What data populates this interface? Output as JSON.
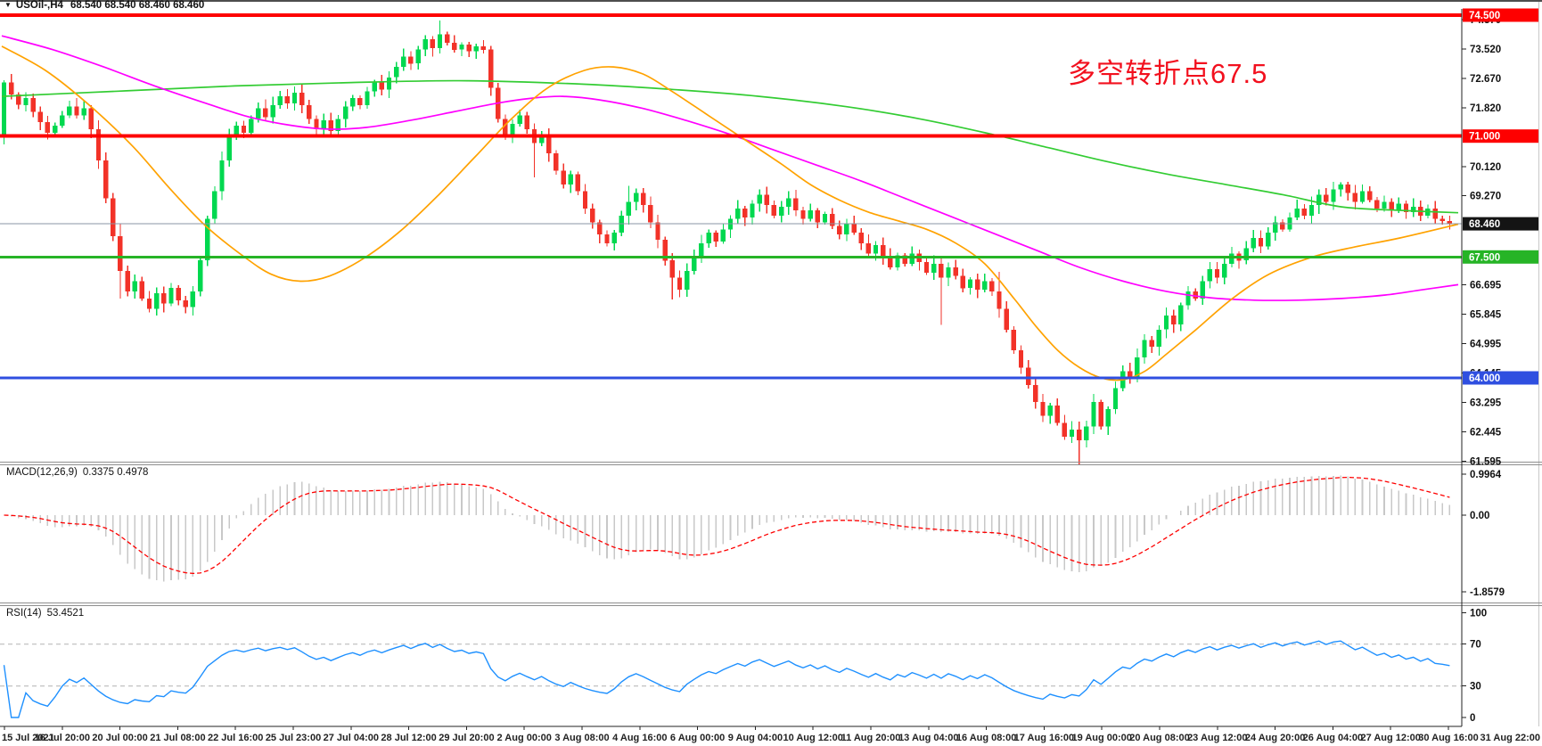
{
  "title_bar": {
    "dropdown_icon": "▼",
    "symbol": "USOil-,H4",
    "ohlc": "68.540 68.540 68.460 68.460"
  },
  "annotation": {
    "text": "多空转折点67.5",
    "color": "#f2101e"
  },
  "macd_panel": {
    "label": "MACD(12,26,9)",
    "values": "0.3375 0.4978",
    "scale_ticks": [
      "0.9964",
      "0.00",
      "-1.8579"
    ]
  },
  "rsi_panel": {
    "label": "RSI(14)",
    "value": "53.4521",
    "scale_ticks": [
      "100",
      "70",
      "30",
      "0"
    ],
    "dashed_levels": [
      70,
      30
    ]
  },
  "chart_data": [
    {
      "type": "candlestick",
      "title": "USOil-,H4",
      "timeframe": "H4",
      "current_ohlc": {
        "open": 68.54,
        "high": 68.54,
        "low": 68.46,
        "close": 68.46
      },
      "current_price": 68.46,
      "ylim": [
        61.55,
        74.68
      ],
      "open_first": 71.0,
      "closes": [
        72.55,
        72.2,
        71.9,
        72.1,
        71.7,
        71.4,
        71.1,
        71.3,
        71.6,
        71.85,
        71.6,
        71.8,
        71.2,
        70.3,
        69.2,
        68.1,
        67.1,
        66.5,
        66.8,
        66.3,
        66.0,
        66.45,
        66.15,
        66.6,
        66.25,
        66.05,
        66.5,
        67.4,
        68.6,
        69.4,
        70.3,
        71.0,
        71.3,
        71.1,
        71.5,
        71.8,
        71.55,
        71.9,
        72.15,
        71.95,
        72.25,
        71.9,
        71.5,
        71.2,
        71.45,
        71.15,
        71.5,
        71.85,
        72.1,
        71.9,
        72.3,
        72.55,
        72.35,
        72.7,
        73.0,
        73.3,
        73.1,
        73.5,
        73.8,
        73.55,
        73.95,
        73.7,
        73.5,
        73.65,
        73.45,
        73.6,
        73.5,
        72.4,
        71.5,
        71.0,
        71.35,
        71.6,
        71.2,
        70.8,
        71.05,
        70.5,
        70.0,
        69.6,
        69.9,
        69.4,
        68.9,
        68.5,
        68.15,
        67.9,
        68.2,
        68.7,
        69.1,
        69.35,
        69.0,
        68.5,
        68.0,
        67.4,
        66.9,
        66.55,
        67.1,
        67.5,
        67.9,
        68.2,
        67.95,
        68.3,
        68.6,
        68.9,
        68.65,
        69.05,
        69.3,
        69.0,
        68.7,
        68.95,
        69.2,
        68.85,
        68.6,
        68.85,
        68.5,
        68.75,
        68.4,
        68.15,
        68.45,
        68.2,
        67.9,
        67.6,
        67.85,
        67.5,
        67.2,
        67.55,
        67.3,
        67.6,
        67.35,
        67.05,
        67.3,
        66.9,
        67.2,
        66.95,
        66.6,
        66.85,
        66.55,
        66.8,
        66.5,
        66.0,
        65.4,
        64.8,
        64.3,
        63.8,
        63.3,
        62.9,
        63.2,
        62.7,
        62.3,
        62.5,
        62.2,
        62.6,
        63.3,
        62.6,
        63.1,
        63.7,
        64.2,
        64.0,
        64.6,
        65.1,
        64.9,
        65.4,
        65.8,
        65.55,
        66.1,
        66.5,
        66.3,
        66.8,
        67.15,
        66.9,
        67.3,
        67.6,
        67.4,
        67.75,
        68.05,
        67.8,
        68.2,
        68.5,
        68.3,
        68.65,
        68.9,
        68.7,
        69.0,
        69.3,
        69.1,
        69.45,
        69.6,
        69.35,
        69.1,
        69.4,
        69.15,
        68.9,
        69.1,
        68.85,
        69.05,
        68.8,
        68.95,
        68.7,
        68.9,
        68.6,
        68.54,
        68.46
      ],
      "wick_boosts": {
        "16": [
          0.1,
          0.55
        ],
        "60": [
          0.3,
          0.05
        ],
        "73": [
          0.1,
          0.9
        ],
        "86": [
          0.3,
          0.05
        ],
        "92": [
          0.05,
          0.4
        ],
        "129": [
          0.05,
          1.3
        ],
        "137": [
          0.35,
          0.1
        ],
        "148": [
          0.05,
          0.5
        ]
      },
      "colors": {
        "up": "#00d84f",
        "down": "#f23228"
      },
      "y_ticks": [
        "74.370",
        "73.520",
        "72.670",
        "71.820",
        "70.120",
        "69.270",
        "66.695",
        "65.845",
        "64.995",
        "64.145",
        "63.295",
        "62.445",
        "61.595"
      ],
      "badges": [
        {
          "text": "74.500",
          "bg": "#fe0000"
        },
        {
          "text": "71.000",
          "bg": "#fe0000"
        },
        {
          "text": "68.460",
          "bg": "#141414"
        },
        {
          "text": "67.500",
          "bg": "#26b426"
        },
        {
          "text": "64.000",
          "bg": "#2f4fe0"
        }
      ],
      "hlines": [
        {
          "price": 74.5,
          "color": "#fe0000",
          "width": 4
        },
        {
          "price": 71.0,
          "color": "#fe0000",
          "width": 4
        },
        {
          "price": 68.46,
          "color": "#8a95a5",
          "width": 1.2
        },
        {
          "price": 67.5,
          "color": "#26b426",
          "width": 3
        },
        {
          "price": 64.0,
          "color": "#2f4fe0",
          "width": 3
        }
      ],
      "moving_averages": [
        {
          "name": "ma-slow-green",
          "color": "#33cc33",
          "points": [
            [
              0,
              72.15
            ],
            [
              0.08,
              72.3
            ],
            [
              0.16,
              72.45
            ],
            [
              0.24,
              72.55
            ],
            [
              0.32,
              72.6
            ],
            [
              0.4,
              72.5
            ],
            [
              0.46,
              72.35
            ],
            [
              0.52,
              72.15
            ],
            [
              0.58,
              71.85
            ],
            [
              0.63,
              71.5
            ],
            [
              0.68,
              71.05
            ],
            [
              0.72,
              70.65
            ],
            [
              0.76,
              70.25
            ],
            [
              0.8,
              69.9
            ],
            [
              0.84,
              69.6
            ],
            [
              0.88,
              69.3
            ],
            [
              0.92,
              68.95
            ],
            [
              0.96,
              68.85
            ],
            [
              1,
              68.78
            ]
          ]
        },
        {
          "name": "ma-medium-magenta",
          "color": "#ff00ff",
          "points": [
            [
              0,
              73.9
            ],
            [
              0.035,
              73.5
            ],
            [
              0.07,
              73.0
            ],
            [
              0.105,
              72.45
            ],
            [
              0.14,
              71.95
            ],
            [
              0.17,
              71.55
            ],
            [
              0.2,
              71.3
            ],
            [
              0.225,
              71.2
            ],
            [
              0.25,
              71.25
            ],
            [
              0.28,
              71.45
            ],
            [
              0.31,
              71.7
            ],
            [
              0.34,
              71.95
            ],
            [
              0.365,
              72.1
            ],
            [
              0.385,
              72.15
            ],
            [
              0.41,
              72.05
            ],
            [
              0.44,
              71.8
            ],
            [
              0.47,
              71.45
            ],
            [
              0.5,
              71.05
            ],
            [
              0.53,
              70.6
            ],
            [
              0.56,
              70.15
            ],
            [
              0.59,
              69.7
            ],
            [
              0.62,
              69.2
            ],
            [
              0.65,
              68.7
            ],
            [
              0.68,
              68.2
            ],
            [
              0.71,
              67.7
            ],
            [
              0.74,
              67.2
            ],
            [
              0.77,
              66.8
            ],
            [
              0.8,
              66.5
            ],
            [
              0.83,
              66.32
            ],
            [
              0.86,
              66.25
            ],
            [
              0.89,
              66.25
            ],
            [
              0.92,
              66.3
            ],
            [
              0.95,
              66.4
            ],
            [
              0.975,
              66.55
            ],
            [
              1,
              66.7
            ]
          ]
        },
        {
          "name": "ma-fast-orange",
          "color": "#ffa200",
          "points": [
            [
              0,
              73.6
            ],
            [
              0.03,
              72.9
            ],
            [
              0.06,
              71.9
            ],
            [
              0.09,
              70.7
            ],
            [
              0.115,
              69.5
            ],
            [
              0.14,
              68.4
            ],
            [
              0.165,
              67.55
            ],
            [
              0.185,
              67.0
            ],
            [
              0.205,
              66.8
            ],
            [
              0.225,
              66.95
            ],
            [
              0.25,
              67.5
            ],
            [
              0.275,
              68.3
            ],
            [
              0.3,
              69.3
            ],
            [
              0.325,
              70.4
            ],
            [
              0.35,
              71.5
            ],
            [
              0.375,
              72.4
            ],
            [
              0.4,
              72.9
            ],
            [
              0.42,
              73.0
            ],
            [
              0.44,
              72.8
            ],
            [
              0.46,
              72.3
            ],
            [
              0.485,
              71.6
            ],
            [
              0.51,
              70.9
            ],
            [
              0.535,
              70.2
            ],
            [
              0.555,
              69.6
            ],
            [
              0.575,
              69.15
            ],
            [
              0.595,
              68.8
            ],
            [
              0.615,
              68.55
            ],
            [
              0.635,
              68.3
            ],
            [
              0.655,
              67.9
            ],
            [
              0.675,
              67.3
            ],
            [
              0.695,
              66.3
            ],
            [
              0.71,
              65.5
            ],
            [
              0.725,
              64.8
            ],
            [
              0.74,
              64.3
            ],
            [
              0.755,
              64.0
            ],
            [
              0.77,
              63.95
            ],
            [
              0.785,
              64.2
            ],
            [
              0.8,
              64.7
            ],
            [
              0.82,
              65.4
            ],
            [
              0.845,
              66.3
            ],
            [
              0.87,
              67.0
            ],
            [
              0.9,
              67.5
            ],
            [
              0.93,
              67.8
            ],
            [
              0.96,
              68.05
            ],
            [
              1,
              68.45
            ]
          ]
        }
      ],
      "x_labels": [
        "15 Jul 2021",
        "16 Jul 20:00",
        "20 Jul 00:00",
        "21 Jul 08:00",
        "22 Jul 16:00",
        "25 Jul 23:00",
        "27 Jul 04:00",
        "28 Jul 12:00",
        "29 Jul 20:00",
        "2 Aug 00:00",
        "3 Aug 08:00",
        "4 Aug 16:00",
        "6 Aug 00:00",
        "9 Aug 04:00",
        "10 Aug 12:00",
        "11 Aug 20:00",
        "13 Aug 04:00",
        "16 Aug 08:00",
        "17 Aug 16:00",
        "19 Aug 00:00",
        "20 Aug 08:00",
        "23 Aug 12:00",
        "24 Aug 20:00",
        "26 Aug 04:00",
        "27 Aug 12:00",
        "30 Aug 16:00",
        "31 Aug 22:00"
      ]
    },
    {
      "type": "macd",
      "params": [
        12,
        26,
        9
      ],
      "current_macd": 0.3375,
      "current_signal": 0.4978,
      "ylim": [
        -2.142,
        1.19
      ],
      "histogram_color": "#c8c8c8",
      "signal_color": "#fe0000",
      "scale_ticks": [
        "0.9964",
        "0.00",
        "-1.8579"
      ]
    },
    {
      "type": "rsi",
      "period": 14,
      "current": 53.4521,
      "ylim": [
        -8.5,
        105.5
      ],
      "color": "#1e90ff",
      "levels": [
        70,
        30
      ],
      "scale_ticks": [
        "100",
        "70",
        "30",
        "0"
      ]
    }
  ]
}
